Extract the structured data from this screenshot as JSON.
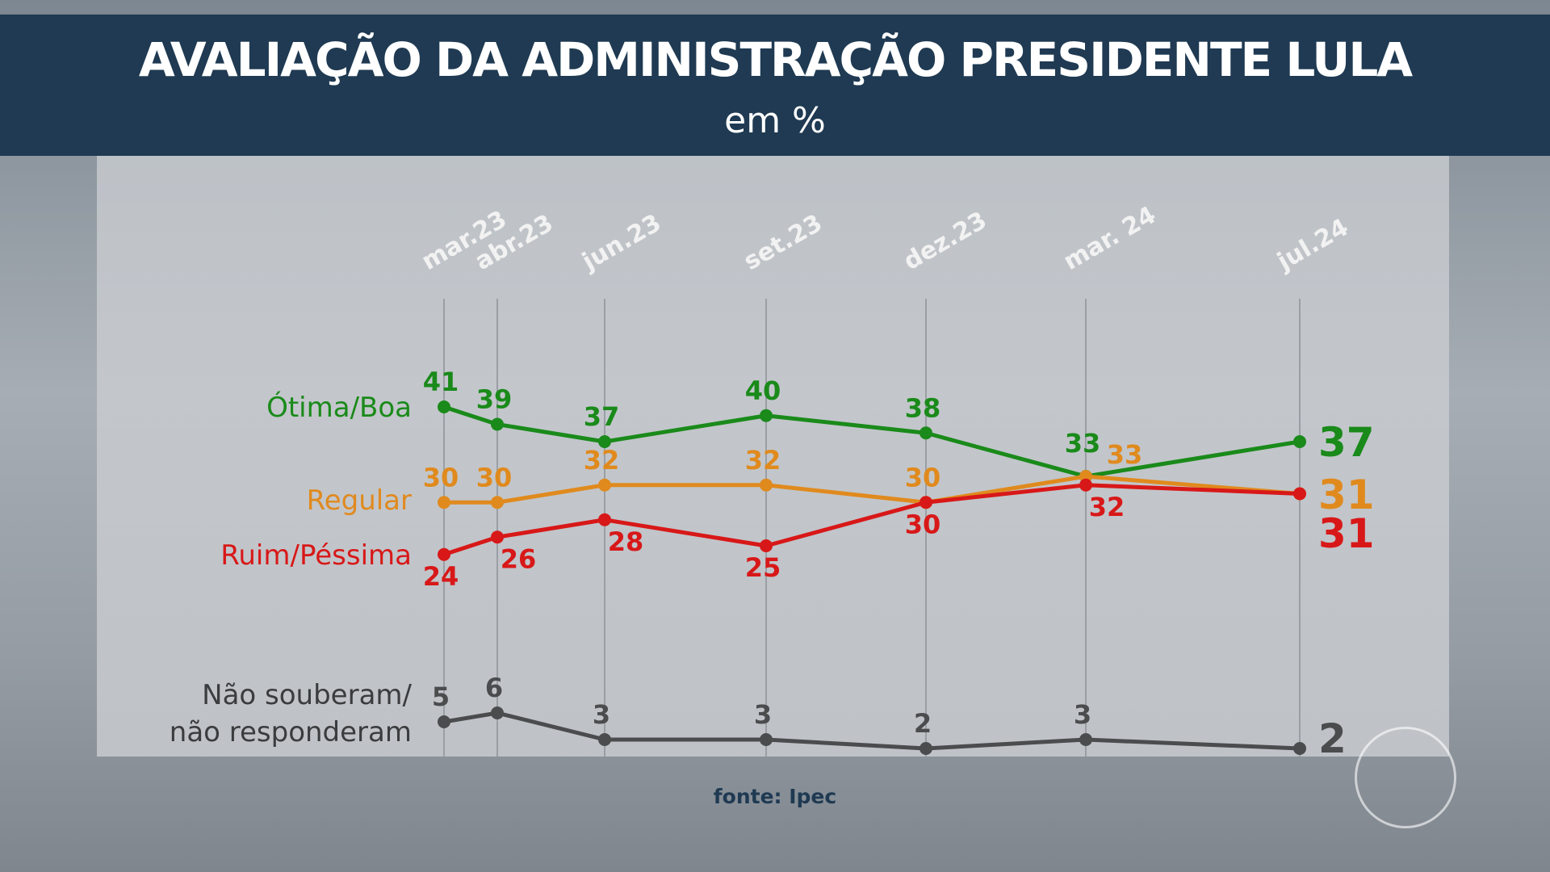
{
  "header": {
    "title": "AVALIAÇÃO DA ADMINISTRAÇÃO PRESIDENTE LULA",
    "subtitle": "em %"
  },
  "source": "fonte: Ipec",
  "chart_data": {
    "type": "line",
    "title": "AVALIAÇÃO DA ADMINISTRAÇÃO PRESIDENTE LULA",
    "subtitle": "em %",
    "categories": [
      "mar.23",
      "abr.23",
      "jun.23",
      "set.23",
      "dez.23",
      "mar. 24",
      "jul.24"
    ],
    "grid": "vertical lines at each date",
    "series": [
      {
        "name": "Ótima/Boa",
        "color": "#1a8a1a",
        "values": [
          41,
          39,
          37,
          40,
          38,
          33,
          37
        ]
      },
      {
        "name": "Regular",
        "color": "#e08a1e",
        "values": [
          30,
          30,
          32,
          32,
          30,
          33,
          31
        ]
      },
      {
        "name": "Ruim/Péssima",
        "color": "#d81818",
        "values": [
          24,
          26,
          28,
          25,
          30,
          32,
          31
        ]
      },
      {
        "name": "Não souberam/ não responderam",
        "name_lines": [
          "Não souberam/",
          "não responderam"
        ],
        "color": "#4a4c4e",
        "values": [
          5,
          6,
          3,
          3,
          2,
          3,
          2
        ]
      }
    ]
  }
}
